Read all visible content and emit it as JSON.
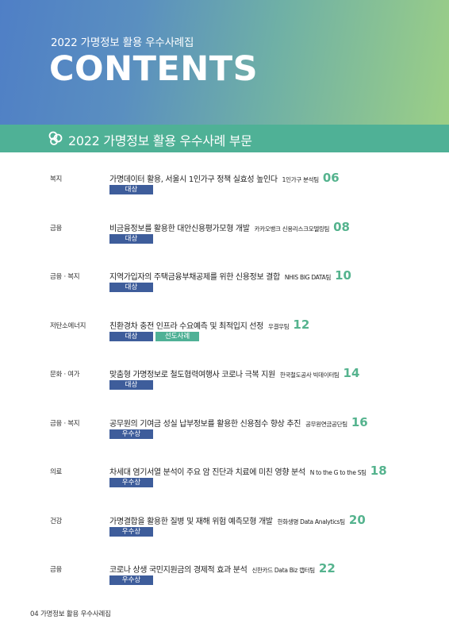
{
  "header": {
    "subtitle": "2022 가명정보 활용 우수사례집",
    "title": "CONTENTS"
  },
  "section": {
    "icon": "chain-link-icon",
    "title": "2022 가명정보 활용 우수사례 부문"
  },
  "colors": {
    "accent_green": "#4fb196",
    "tag_blue": "#3e5d9b",
    "page_number": "#55b38e"
  },
  "entries": [
    {
      "category": "복지",
      "title": "가명데이터 활용, 서울시 1인가구 정책 실효성 높인다",
      "org": "1인가구 분석팀",
      "page": "06",
      "tags": [
        {
          "label": "대상",
          "color": "blue"
        }
      ]
    },
    {
      "category": "금융",
      "title": "비금융정보를 활용한 대안신용평가모형 개발",
      "org": "카카오뱅크 신용리스크모델링팀",
      "page": "08",
      "tags": [
        {
          "label": "대상",
          "color": "blue"
        }
      ]
    },
    {
      "category": "금융 · 복지",
      "title": "지역가입자의 주택금융부채공제를 위한 신용정보 결합",
      "org": "NHIS BIG DATA팀",
      "page": "10",
      "tags": [
        {
          "label": "대상",
          "color": "blue"
        }
      ]
    },
    {
      "category": "저탄소에너지",
      "title": "친환경차 충전 인프라 수요예측 및 최적입지 선정",
      "org": "우결우팀",
      "page": "12",
      "tags": [
        {
          "label": "대상",
          "color": "blue"
        },
        {
          "label": "선도사례",
          "color": "green"
        }
      ]
    },
    {
      "category": "문화 · 여가",
      "title": "맞춤형 가명정보로 철도협력여행사 코로나 극복 지원",
      "org": "한국철도공사 빅데이터팀",
      "page": "14",
      "tags": [
        {
          "label": "대상",
          "color": "blue"
        }
      ]
    },
    {
      "category": "금융 · 복지",
      "title": "공무원의 기여금 성실 납부정보를 활용한 신용점수 향상 추진",
      "org": "공무원연금공단팀",
      "page": "16",
      "tags": [
        {
          "label": "우수상",
          "color": "blue"
        }
      ]
    },
    {
      "category": "의료",
      "title": "차세대 염기서열 분석이 주요 암 진단과 치료에 미친 영향 분석",
      "org": "N to the G to the S팀",
      "page": "18",
      "tags": [
        {
          "label": "우수상",
          "color": "blue"
        }
      ]
    },
    {
      "category": "건강",
      "title": "가명결합을 활용한 질병 및 재해 위험 예측모형 개발",
      "org": "한화생명 Data Analytics팀",
      "page": "20",
      "tags": [
        {
          "label": "우수상",
          "color": "blue"
        }
      ]
    },
    {
      "category": "금융",
      "title": "코로나 상생 국민지원금의 경제적 효과 분석",
      "org": "신한카드 Data Biz 캡터팀",
      "page": "22",
      "tags": [
        {
          "label": "우수상",
          "color": "blue"
        }
      ]
    }
  ],
  "footer": {
    "page_num": "04",
    "text": "가명정보 활용 우수사례집"
  }
}
